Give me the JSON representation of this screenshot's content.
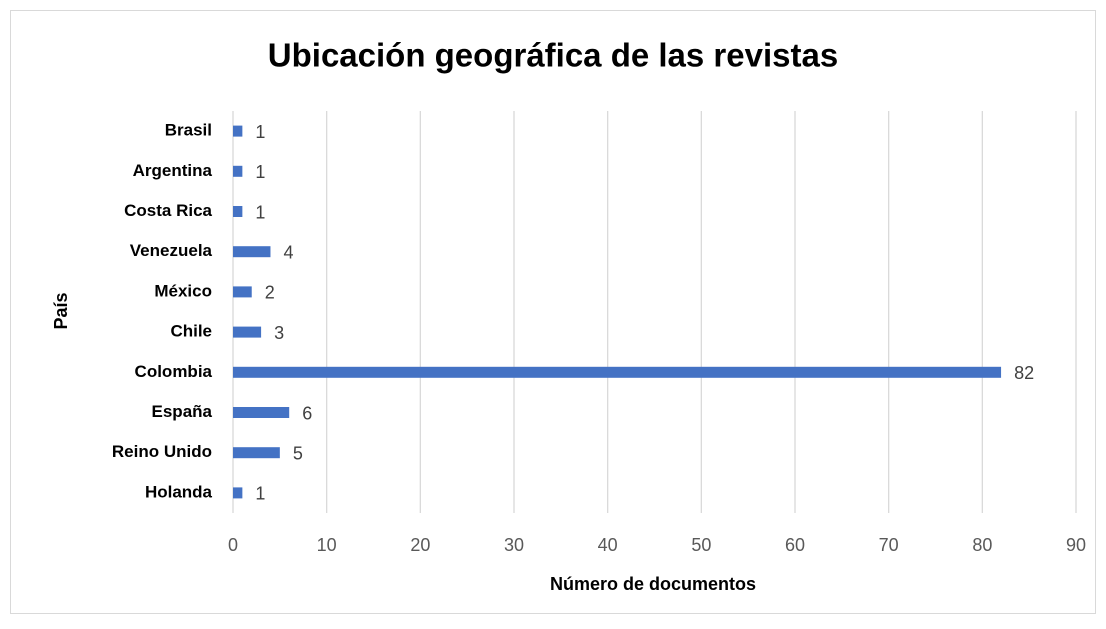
{
  "chart_data": {
    "type": "hbar",
    "title": "Ubicación geográfica de las revistas",
    "x_label": "Número de documentos",
    "y_label": "País",
    "categories": [
      "Brasil",
      "Argentina",
      "Costa Rica",
      "Venezuela",
      "México",
      "Chile",
      "Colombia",
      "España",
      "Reino Unido",
      "Holanda"
    ],
    "values": [
      1,
      1,
      1,
      4,
      2,
      3,
      82,
      6,
      5,
      1
    ],
    "color": "#4472c4",
    "xlim": [
      0,
      90
    ],
    "xticks": [
      0,
      10,
      20,
      30,
      40,
      50,
      60,
      70,
      80,
      90
    ],
    "grid": true
  }
}
